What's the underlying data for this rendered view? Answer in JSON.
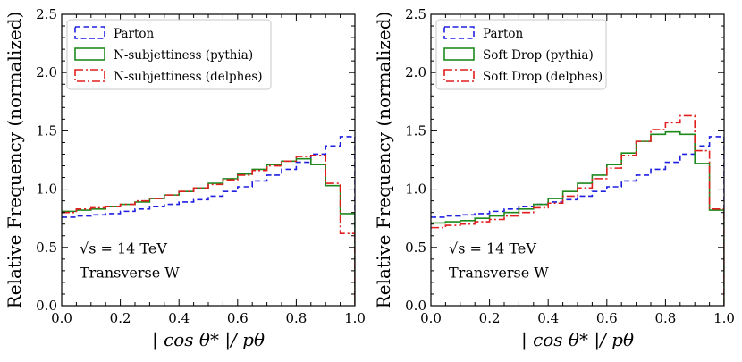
{
  "chart_data": [
    {
      "type": "line",
      "step": true,
      "title": "",
      "xlabel": "| cos θ* |/ pθ",
      "ylabel": "Relative Frequency (normalized)",
      "xlim": [
        0.0,
        1.0
      ],
      "ylim": [
        0.0,
        2.5
      ],
      "xticks": [
        "0.0",
        "0.2",
        "0.4",
        "0.6",
        "0.8",
        "1.0"
      ],
      "yticks": [
        "0.0",
        "0.5",
        "1.0",
        "1.5",
        "2.0",
        "2.5"
      ],
      "legend_position": "top-left",
      "bin_edges": [
        0.0,
        0.05,
        0.1,
        0.15,
        0.2,
        0.25,
        0.3,
        0.35,
        0.4,
        0.45,
        0.5,
        0.55,
        0.6,
        0.65,
        0.7,
        0.75,
        0.8,
        0.85,
        0.9,
        0.95,
        1.0
      ],
      "annotations": [
        "√s = 14 TeV",
        "Transverse W"
      ],
      "series": [
        {
          "name": "Parton",
          "color": "#1f1fe0",
          "style": "dashed",
          "values": [
            0.76,
            0.77,
            0.78,
            0.79,
            0.81,
            0.83,
            0.85,
            0.87,
            0.89,
            0.91,
            0.94,
            0.98,
            1.02,
            1.07,
            1.12,
            1.17,
            1.23,
            1.3,
            1.37,
            1.45
          ]
        },
        {
          "name": "N-subjettiness (pythia)",
          "color": "#1e8a1e",
          "style": "solid",
          "values": [
            0.81,
            0.82,
            0.83,
            0.85,
            0.87,
            0.89,
            0.92,
            0.95,
            0.98,
            1.01,
            1.05,
            1.09,
            1.13,
            1.17,
            1.21,
            1.24,
            1.26,
            1.21,
            1.03,
            0.79
          ]
        },
        {
          "name": "N-subjettiness (delphes)",
          "color": "#e01f1f",
          "style": "dashdot",
          "values": [
            0.8,
            0.83,
            0.84,
            0.85,
            0.87,
            0.9,
            0.92,
            0.95,
            0.98,
            1.01,
            1.04,
            1.08,
            1.12,
            1.16,
            1.2,
            1.24,
            1.28,
            1.29,
            1.05,
            0.62
          ]
        }
      ]
    },
    {
      "type": "line",
      "step": true,
      "title": "",
      "xlabel": "| cos θ* |/ pθ",
      "ylabel": "Relative Frequency (normalized)",
      "xlim": [
        0.0,
        1.0
      ],
      "ylim": [
        0.0,
        2.5
      ],
      "xticks": [
        "0.0",
        "0.2",
        "0.4",
        "0.6",
        "0.8",
        "1.0"
      ],
      "yticks": [
        "0.0",
        "0.5",
        "1.0",
        "1.5",
        "2.0",
        "2.5"
      ],
      "legend_position": "top-left",
      "bin_edges": [
        0.0,
        0.05,
        0.1,
        0.15,
        0.2,
        0.25,
        0.3,
        0.35,
        0.4,
        0.45,
        0.5,
        0.55,
        0.6,
        0.65,
        0.7,
        0.75,
        0.8,
        0.85,
        0.9,
        0.95,
        1.0
      ],
      "annotations": [
        "√s = 14 TeV",
        "Transverse W"
      ],
      "series": [
        {
          "name": "Parton",
          "color": "#1f1fe0",
          "style": "dashed",
          "values": [
            0.76,
            0.77,
            0.78,
            0.79,
            0.81,
            0.83,
            0.85,
            0.87,
            0.89,
            0.91,
            0.94,
            0.98,
            1.02,
            1.07,
            1.12,
            1.17,
            1.23,
            1.3,
            1.37,
            1.45
          ]
        },
        {
          "name": "Soft Drop (pythia)",
          "color": "#1e8a1e",
          "style": "solid",
          "values": [
            0.71,
            0.72,
            0.73,
            0.75,
            0.77,
            0.8,
            0.83,
            0.87,
            0.92,
            0.98,
            1.05,
            1.12,
            1.21,
            1.31,
            1.41,
            1.47,
            1.49,
            1.47,
            1.22,
            0.82
          ]
        },
        {
          "name": "Soft Drop (delphes)",
          "color": "#e01f1f",
          "style": "dashdot",
          "values": [
            0.67,
            0.69,
            0.7,
            0.72,
            0.74,
            0.77,
            0.8,
            0.84,
            0.88,
            0.94,
            1.01,
            1.09,
            1.18,
            1.29,
            1.41,
            1.51,
            1.57,
            1.63,
            1.33,
            0.83
          ]
        }
      ]
    }
  ]
}
